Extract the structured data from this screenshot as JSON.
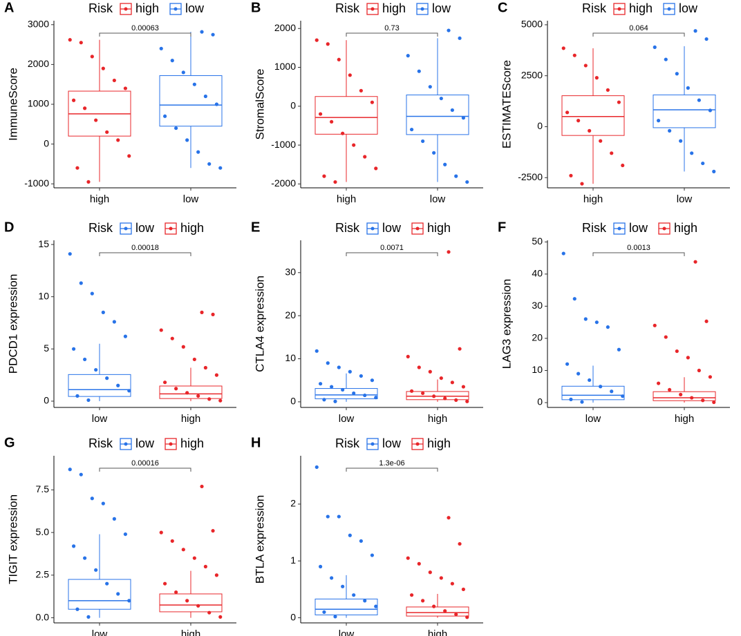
{
  "chart_data": [
    {
      "type": "box",
      "label": "A",
      "ylabel": "ImmuneScore",
      "legend_title": "Risk",
      "pvalue": "0.00063",
      "categories": [
        "high",
        "low"
      ],
      "ylim": [
        -1100,
        3100
      ],
      "yticks": [
        -1000,
        0,
        1000,
        2000,
        3000
      ],
      "series": [
        {
          "name": "high",
          "color": "#e8262a",
          "box": {
            "min": -950,
            "q1": 200,
            "median": 760,
            "q3": 1330,
            "max": 2620
          },
          "points": [
            2620,
            2550,
            2200,
            1900,
            1600,
            1400,
            1100,
            900,
            600,
            300,
            100,
            -300,
            -600,
            -950
          ]
        },
        {
          "name": "low",
          "color": "#2873e8",
          "box": {
            "min": -600,
            "q1": 450,
            "median": 980,
            "q3": 1720,
            "max": 2820
          },
          "points": [
            2820,
            2750,
            2400,
            2100,
            1800,
            1500,
            1200,
            1000,
            700,
            400,
            100,
            -200,
            -500,
            -600
          ]
        }
      ]
    },
    {
      "type": "box",
      "label": "B",
      "ylabel": "StromalScore",
      "legend_title": "Risk",
      "pvalue": "0.73",
      "categories": [
        "high",
        "low"
      ],
      "ylim": [
        -2100,
        2200
      ],
      "yticks": [
        -2000,
        -1000,
        0,
        1000,
        2000
      ],
      "series": [
        {
          "name": "high",
          "color": "#e8262a",
          "box": {
            "min": -1950,
            "q1": -720,
            "median": -290,
            "q3": 250,
            "max": 1700
          },
          "points": [
            1700,
            1600,
            1200,
            800,
            400,
            100,
            -200,
            -400,
            -700,
            -1000,
            -1300,
            -1600,
            -1800,
            -1950
          ]
        },
        {
          "name": "low",
          "color": "#2873e8",
          "box": {
            "min": -1950,
            "q1": -730,
            "median": -260,
            "q3": 290,
            "max": 1750
          },
          "points": [
            1950,
            1750,
            1300,
            900,
            500,
            200,
            -100,
            -300,
            -600,
            -900,
            -1200,
            -1500,
            -1800,
            -1950
          ]
        }
      ]
    },
    {
      "type": "box",
      "label": "C",
      "ylabel": "ESTIMATEScore",
      "legend_title": "Risk",
      "pvalue": "0.064",
      "categories": [
        "high",
        "low"
      ],
      "ylim": [
        -3000,
        5200
      ],
      "yticks": [
        -2500,
        0,
        2500,
        5000
      ],
      "series": [
        {
          "name": "high",
          "color": "#e8262a",
          "box": {
            "min": -2800,
            "q1": -430,
            "median": 500,
            "q3": 1520,
            "max": 3850
          },
          "points": [
            3850,
            3500,
            3000,
            2400,
            1800,
            1200,
            700,
            300,
            -200,
            -700,
            -1300,
            -1900,
            -2400,
            -2800
          ]
        },
        {
          "name": "low",
          "color": "#2873e8",
          "box": {
            "min": -2200,
            "q1": -50,
            "median": 830,
            "q3": 1560,
            "max": 3950
          },
          "points": [
            4700,
            4300,
            3900,
            3300,
            2600,
            1900,
            1300,
            800,
            300,
            -200,
            -700,
            -1300,
            -1800,
            -2200
          ]
        }
      ]
    },
    {
      "type": "box",
      "label": "D",
      "ylabel": "PDCD1 expression",
      "legend_title": "Risk",
      "pvalue": "0.00018",
      "categories": [
        "low",
        "high"
      ],
      "ylim": [
        -0.6,
        15.4
      ],
      "yticks": [
        0,
        5,
        10,
        15
      ],
      "series": [
        {
          "name": "low",
          "color": "#2873e8",
          "box": {
            "min": 0,
            "q1": 0.45,
            "median": 1.1,
            "q3": 2.55,
            "max": 5.5
          },
          "points": [
            14.1,
            11.3,
            10.3,
            8.5,
            7.6,
            6.2,
            5.0,
            4.0,
            3.0,
            2.2,
            1.5,
            1.0,
            0.5,
            0.1
          ]
        },
        {
          "name": "high",
          "color": "#e8262a",
          "box": {
            "min": 0,
            "q1": 0.25,
            "median": 0.7,
            "q3": 1.45,
            "max": 3.2
          },
          "points": [
            8.5,
            8.3,
            6.8,
            6.0,
            5.2,
            4.0,
            3.2,
            2.5,
            1.8,
            1.2,
            0.8,
            0.5,
            0.2,
            0.05
          ]
        }
      ]
    },
    {
      "type": "box",
      "label": "E",
      "ylabel": "CTLA4 expression",
      "legend_title": "Risk",
      "pvalue": "0.0071",
      "categories": [
        "low",
        "high"
      ],
      "ylim": [
        -1.3,
        37.5
      ],
      "yticks": [
        0,
        10,
        20,
        30
      ],
      "series": [
        {
          "name": "low",
          "color": "#2873e8",
          "box": {
            "min": 0,
            "q1": 0.7,
            "median": 1.6,
            "q3": 3.1,
            "max": 6.6
          },
          "points": [
            11.8,
            9.0,
            8.0,
            7.0,
            6.0,
            5.0,
            4.2,
            3.5,
            2.8,
            2.0,
            1.5,
            1.0,
            0.5,
            0.1
          ]
        },
        {
          "name": "high",
          "color": "#e8262a",
          "box": {
            "min": 0,
            "q1": 0.5,
            "median": 1.3,
            "q3": 2.4,
            "max": 5.2
          },
          "points": [
            34.8,
            12.3,
            10.5,
            8.0,
            7.0,
            5.5,
            4.5,
            3.5,
            2.5,
            2.0,
            1.3,
            0.8,
            0.4,
            0.1
          ]
        }
      ]
    },
    {
      "type": "box",
      "label": "F",
      "ylabel": "LAG3 expression",
      "legend_title": "Risk",
      "pvalue": "0.0013",
      "categories": [
        "low",
        "high"
      ],
      "ylim": [
        -1.5,
        50.5
      ],
      "yticks": [
        0,
        10,
        20,
        30,
        40,
        50
      ],
      "series": [
        {
          "name": "low",
          "color": "#2873e8",
          "box": {
            "min": 0,
            "q1": 0.9,
            "median": 2.3,
            "q3": 5.1,
            "max": 11.5
          },
          "points": [
            46.4,
            32.3,
            26.0,
            25.0,
            23.5,
            16.5,
            12.0,
            9.0,
            7.0,
            5.0,
            3.5,
            2.0,
            1.0,
            0.2
          ]
        },
        {
          "name": "high",
          "color": "#e8262a",
          "box": {
            "min": 0,
            "q1": 0.6,
            "median": 1.5,
            "q3": 3.4,
            "max": 7.9
          },
          "points": [
            43.8,
            25.3,
            24.0,
            20.4,
            16.0,
            14.0,
            10.0,
            8.0,
            6.0,
            4.0,
            2.5,
            1.5,
            0.7,
            0.1
          ]
        }
      ]
    },
    {
      "type": "box",
      "label": "G",
      "ylabel": "TIGIT expression",
      "legend_title": "Risk",
      "pvalue": "0.00016",
      "categories": [
        "low",
        "high"
      ],
      "ylim": [
        -0.3,
        9.5
      ],
      "yticks": [
        {
          "value": 0,
          "label": "0.0"
        },
        2.5,
        {
          "value": 5,
          "label": "5.0"
        },
        7.5
      ],
      "series": [
        {
          "name": "low",
          "color": "#2873e8",
          "box": {
            "min": 0,
            "q1": 0.5,
            "median": 1.0,
            "q3": 2.25,
            "max": 4.9
          },
          "points": [
            8.7,
            8.4,
            7.0,
            6.7,
            5.8,
            4.9,
            4.2,
            3.5,
            2.8,
            2.0,
            1.4,
            1.0,
            0.5,
            0.05
          ]
        },
        {
          "name": "high",
          "color": "#e8262a",
          "box": {
            "min": 0,
            "q1": 0.35,
            "median": 0.75,
            "q3": 1.4,
            "max": 2.75
          },
          "points": [
            7.7,
            5.1,
            5.0,
            4.5,
            4.0,
            3.5,
            3.0,
            2.5,
            2.0,
            1.5,
            1.0,
            0.7,
            0.3,
            0.05
          ]
        }
      ]
    },
    {
      "type": "box",
      "label": "H",
      "ylabel": "BTLA expression",
      "legend_title": "Risk",
      "pvalue": "1.3e-06",
      "categories": [
        "low",
        "high"
      ],
      "ylim": [
        -0.09,
        2.85
      ],
      "yticks": [
        0,
        1,
        2
      ],
      "series": [
        {
          "name": "low",
          "color": "#2873e8",
          "box": {
            "min": 0,
            "q1": 0.05,
            "median": 0.15,
            "q3": 0.33,
            "max": 0.75
          },
          "points": [
            2.65,
            1.78,
            1.78,
            1.45,
            1.35,
            1.1,
            0.9,
            0.7,
            0.55,
            0.4,
            0.3,
            0.2,
            0.1,
            0.02
          ]
        },
        {
          "name": "high",
          "color": "#e8262a",
          "box": {
            "min": 0,
            "q1": 0.03,
            "median": 0.09,
            "q3": 0.19,
            "max": 0.42
          },
          "points": [
            1.76,
            1.3,
            1.05,
            0.95,
            0.8,
            0.7,
            0.6,
            0.5,
            0.4,
            0.3,
            0.2,
            0.12,
            0.06,
            0.01
          ]
        }
      ]
    }
  ]
}
